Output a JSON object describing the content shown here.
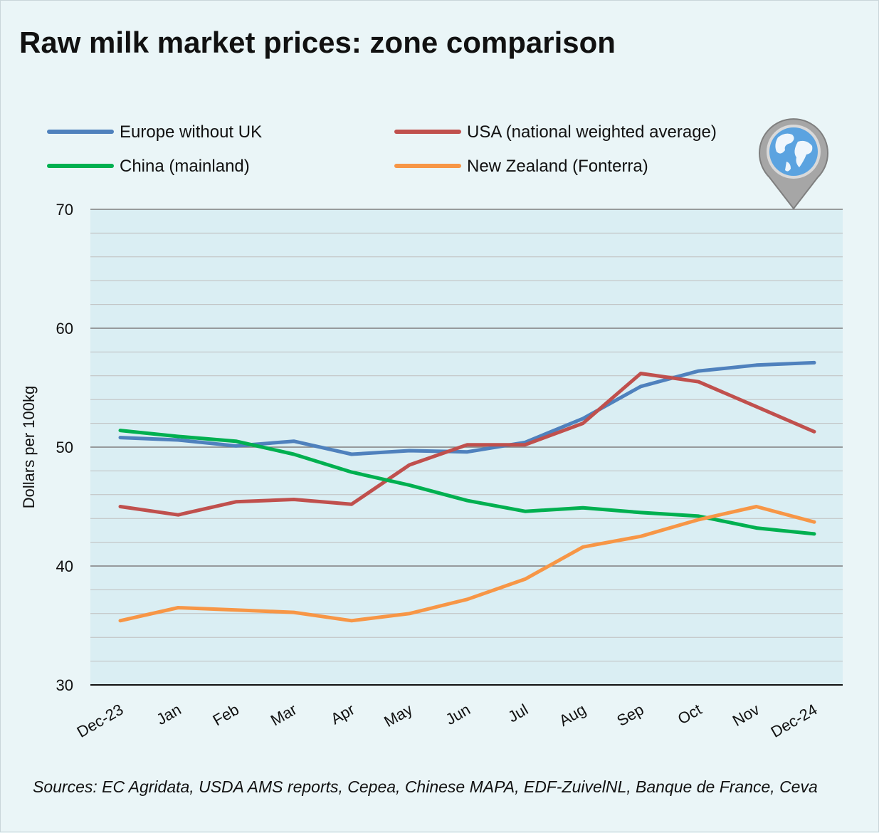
{
  "title": "Raw milk market prices: zone comparison",
  "source": "Sources: EC Agridata, USDA AMS reports, Cepea, Chinese MAPA, EDF-ZuivelNL, Banque de France, Ceva",
  "icon": "globe-pin-icon",
  "chart_data": {
    "type": "line",
    "title": "Raw milk market prices: zone comparison",
    "xlabel": "",
    "ylabel": "Dollars per 100kg",
    "ylim": [
      30,
      70
    ],
    "yticks": [
      30,
      40,
      50,
      60,
      70
    ],
    "grid": true,
    "legend_position": "top",
    "categories": [
      "Dec-23",
      "Jan",
      "Feb",
      "Mar",
      "Apr",
      "May",
      "Jun",
      "Jul",
      "Aug",
      "Sep",
      "Oct",
      "Nov",
      "Dec-24"
    ],
    "series": [
      {
        "name": "Europe without UK",
        "color": "#4f81bd",
        "values": [
          50.8,
          50.6,
          50.1,
          50.5,
          49.4,
          49.7,
          49.6,
          50.4,
          52.4,
          55.1,
          56.4,
          56.9,
          57.1
        ]
      },
      {
        "name": "USA (national weighted average)",
        "color": "#c0504d",
        "values": [
          45.0,
          44.3,
          45.4,
          45.6,
          45.2,
          48.5,
          50.2,
          50.2,
          52.0,
          56.2,
          55.5,
          53.4,
          51.3
        ]
      },
      {
        "name": "China (mainland)",
        "color": "#00b050",
        "values": [
          51.4,
          50.9,
          50.5,
          49.4,
          47.9,
          46.8,
          45.5,
          44.6,
          44.9,
          44.5,
          44.2,
          43.2,
          42.7
        ]
      },
      {
        "name": "New Zealand (Fonterra)",
        "color": "#f79646",
        "values": [
          35.4,
          36.5,
          36.3,
          36.1,
          35.4,
          36.0,
          37.2,
          38.9,
          41.6,
          42.5,
          43.9,
          45.0,
          43.7
        ]
      }
    ]
  }
}
